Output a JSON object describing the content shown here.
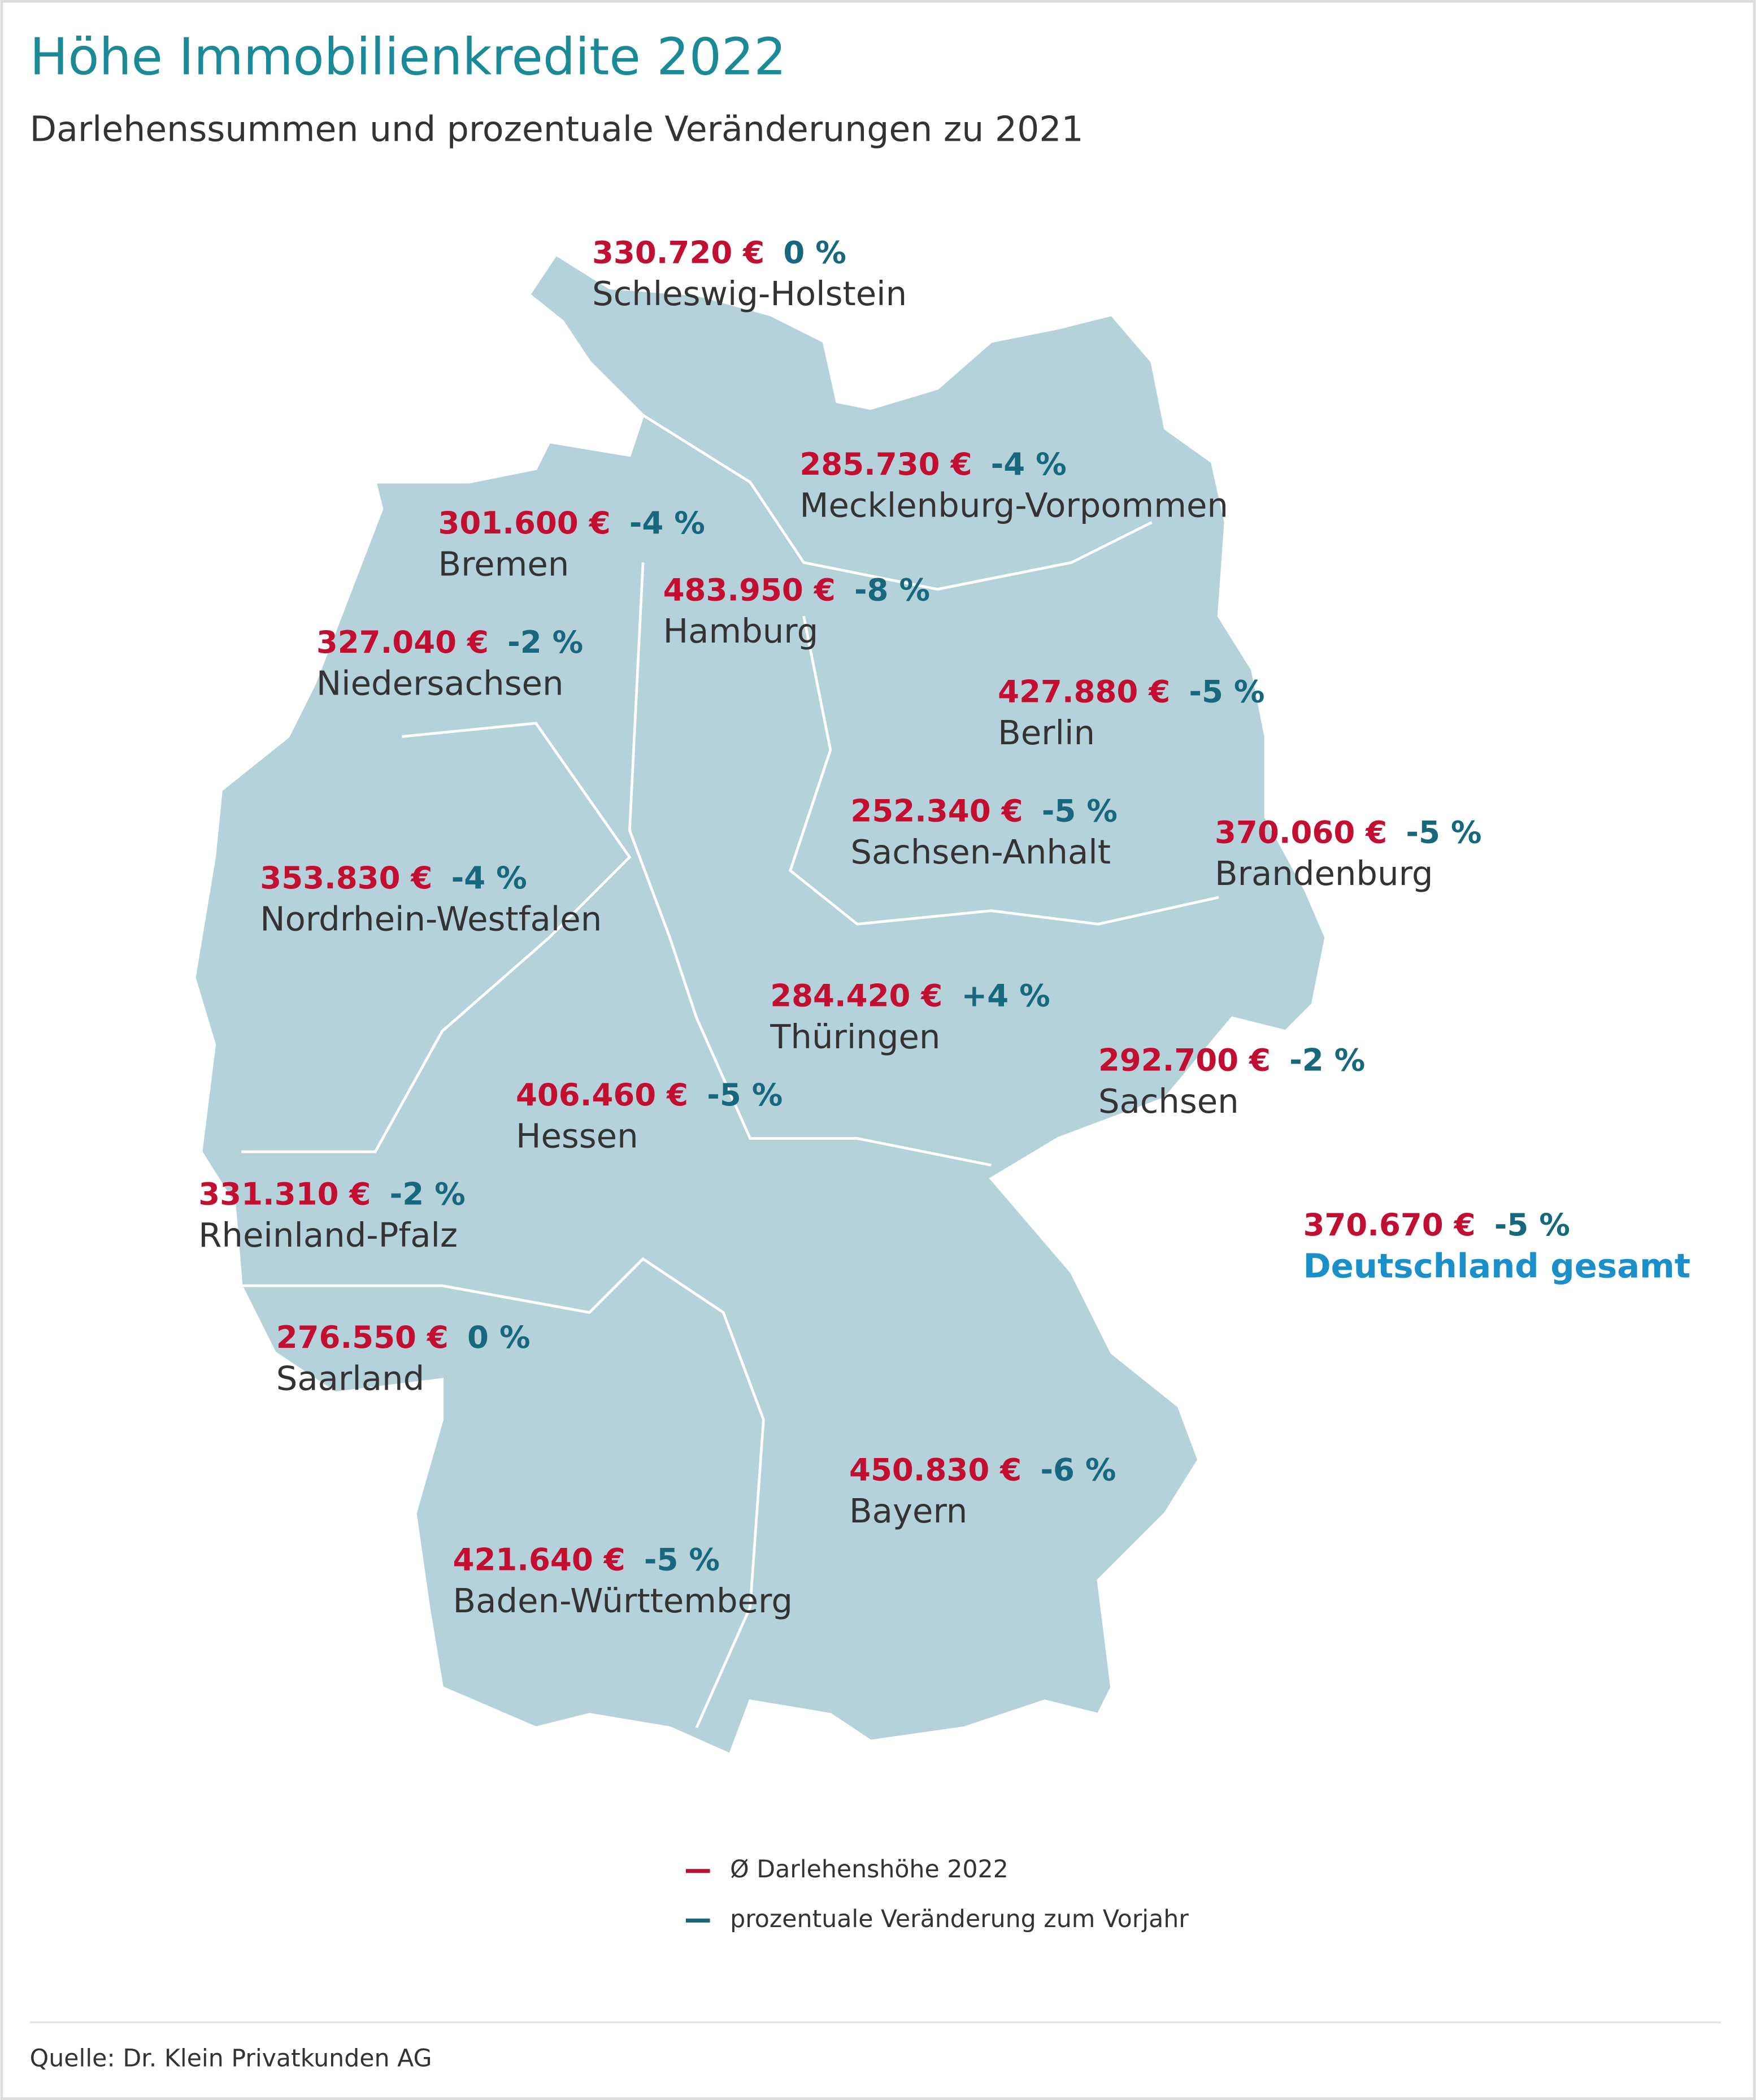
{
  "title": "Höhe Immobilienkredite 2022",
  "subtitle": "Darlehenssummen und prozentuale Veränderungen zu 2021",
  "regions": [
    {
      "name": "Schleswig-Holstein",
      "amount": "330.720 €",
      "change": "0 %"
    },
    {
      "name": "Mecklenburg-Vorpommen",
      "amount": "285.730 €",
      "change": "-4 %"
    },
    {
      "name": "Bremen",
      "amount": "301.600 €",
      "change": "-4 %"
    },
    {
      "name": "Hamburg",
      "amount": "483.950 €",
      "change": "-8 %"
    },
    {
      "name": "Niedersachsen",
      "amount": "327.040 €",
      "change": "-2 %"
    },
    {
      "name": "Berlin",
      "amount": "427.880 €",
      "change": "-5 %"
    },
    {
      "name": "Sachsen-Anhalt",
      "amount": "252.340 €",
      "change": "-5 %"
    },
    {
      "name": "Brandenburg",
      "amount": "370.060 €",
      "change": "-5 %"
    },
    {
      "name": "Nordrhein-Westfalen",
      "amount": "353.830 €",
      "change": "-4 %"
    },
    {
      "name": "Thüringen",
      "amount": "284.420 €",
      "change": "+4 %"
    },
    {
      "name": "Sachsen",
      "amount": "292.700 €",
      "change": "-2 %"
    },
    {
      "name": "Hessen",
      "amount": "406.460 €",
      "change": "-5 %"
    },
    {
      "name": "Rheinland-Pfalz",
      "amount": "331.310 €",
      "change": "-2 %"
    },
    {
      "name": "Saarland",
      "amount": "276.550 €",
      "change": "0 %"
    },
    {
      "name": "Bayern",
      "amount": "450.830 €",
      "change": "-6 %"
    },
    {
      "name": "Baden-Württemberg",
      "amount": "421.640 €",
      "change": "-5 %"
    }
  ],
  "total": {
    "name": "Deutschland gesamt",
    "amount": "370.670 €",
    "change": "-5 %"
  },
  "legend": [
    "Ø Darlehenshöhe 2022",
    "prozentuale Veränderung zum Vorjahr"
  ],
  "source": "Quelle: Dr. Klein Privatkunden AG"
}
